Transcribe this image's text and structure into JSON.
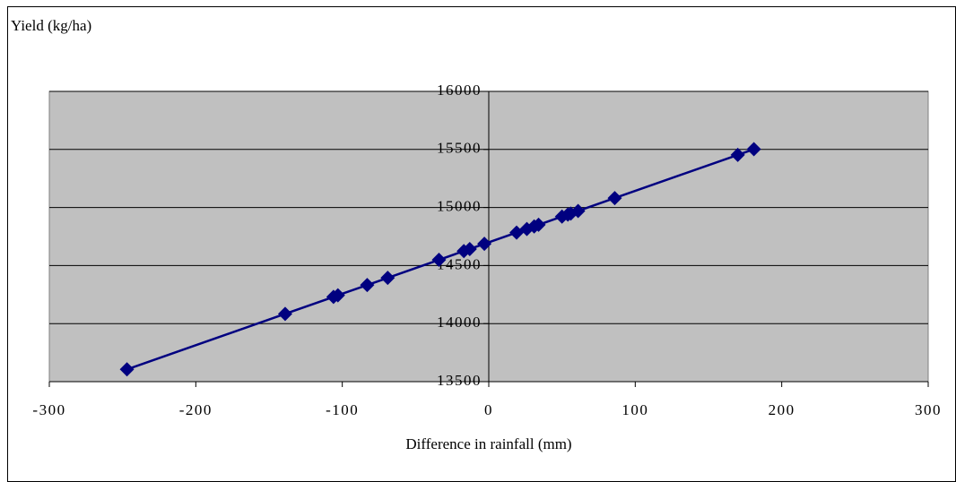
{
  "chart_data": {
    "type": "line-scatter",
    "y_label": "Yield (kg/ha)",
    "x_label": "Difference in rainfall (mm)",
    "x": [
      -247,
      -139,
      -106,
      -103,
      -83,
      -69,
      -34,
      -17,
      -13,
      -3,
      19,
      26,
      31,
      34,
      50,
      54,
      56,
      61,
      86,
      170,
      181
    ],
    "values": [
      13606,
      14084,
      14230,
      14244,
      14332,
      14394,
      14549,
      14625,
      14642,
      14687,
      14784,
      14815,
      14837,
      14851,
      14922,
      14939,
      14948,
      14970,
      15081,
      15453,
      15502
    ],
    "color": "#000080",
    "xlim": [
      -300,
      300
    ],
    "xticks": [
      -300,
      -200,
      -100,
      0,
      100,
      200,
      300
    ],
    "ylim": [
      13500,
      16000
    ],
    "yticks": [
      13500,
      14000,
      14500,
      15000,
      15500,
      16000
    ],
    "grid": true,
    "background": "#c0c0c0"
  }
}
